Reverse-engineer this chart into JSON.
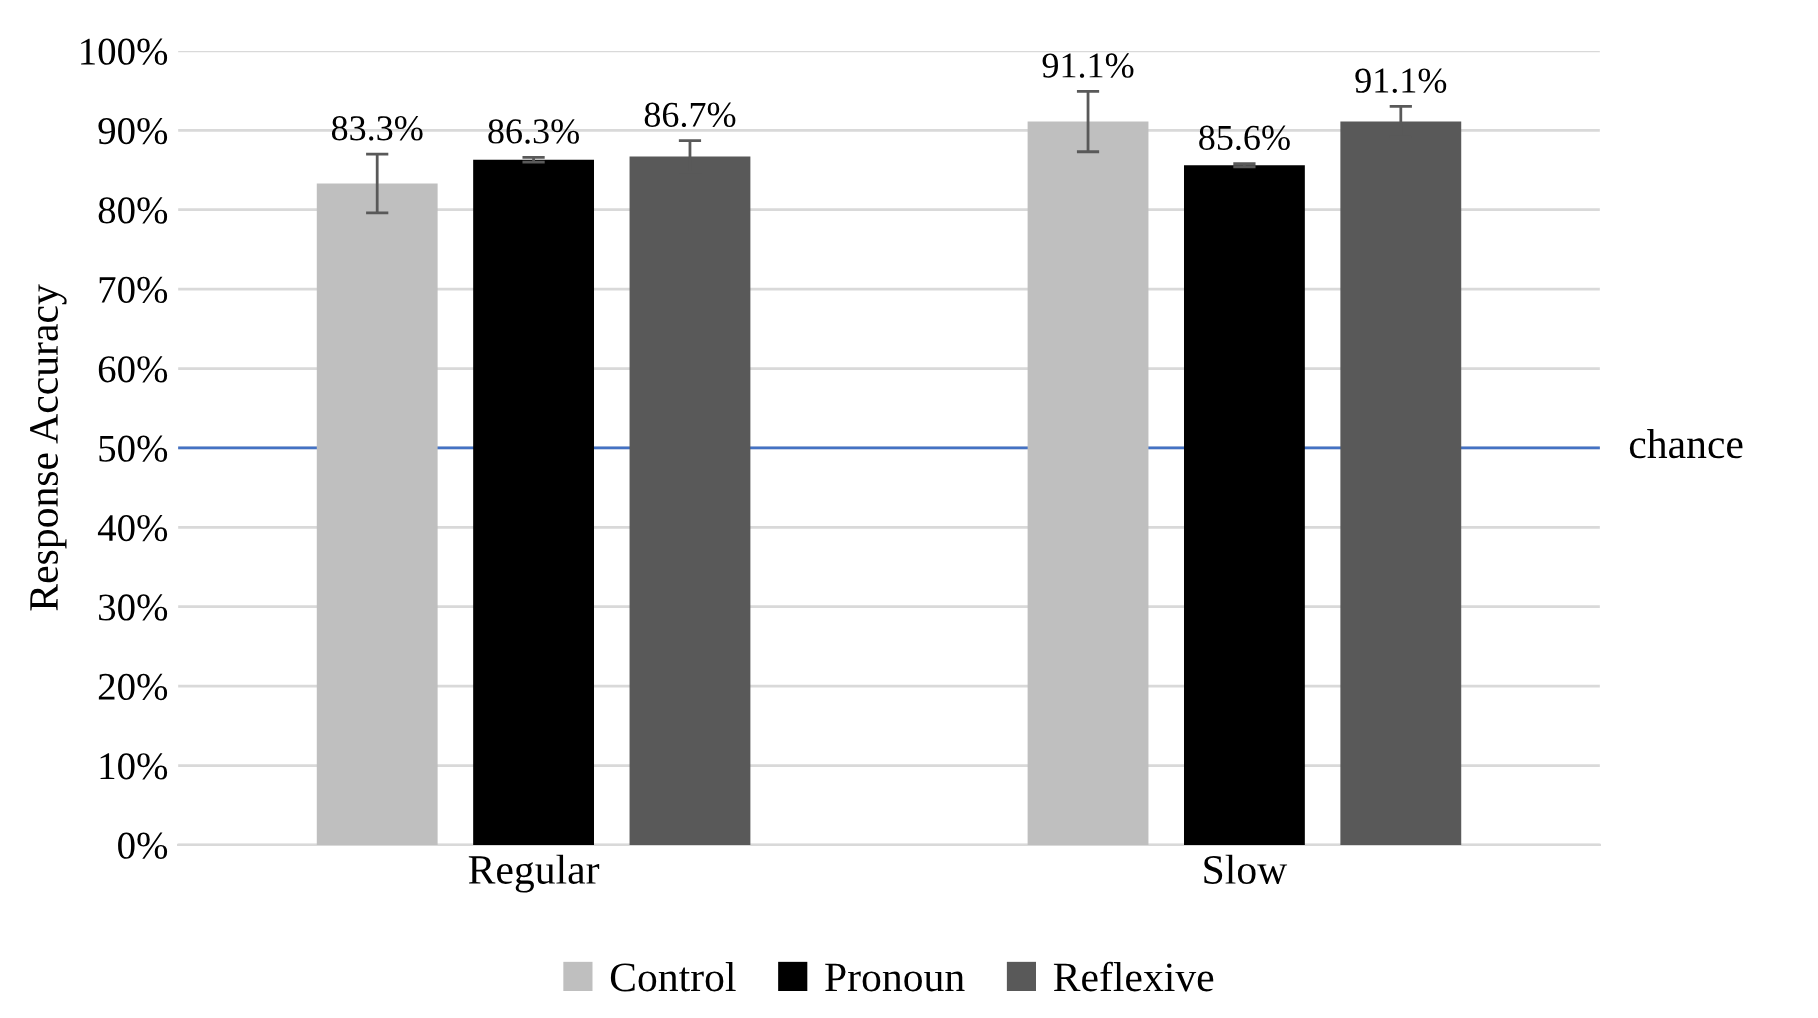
{
  "chart_data": {
    "type": "bar",
    "ylabel": "Response Accuracy",
    "categories": [
      "Regular",
      "Slow"
    ],
    "series": [
      {
        "name": "Control",
        "color": "#bfbfbf",
        "values": [
          83.3,
          91.1
        ],
        "errors": [
          3.7,
          3.8
        ],
        "value_labels": [
          "83.3%",
          "91.1%"
        ]
      },
      {
        "name": "Pronoun",
        "color": "#000000",
        "values": [
          86.3,
          85.6
        ],
        "errors": [
          0.3,
          0.2
        ],
        "value_labels": [
          "86.3%",
          "85.6%"
        ]
      },
      {
        "name": "Reflexive",
        "color": "#595959",
        "values": [
          86.7,
          91.1
        ],
        "errors": [
          2.0,
          1.9
        ],
        "value_labels": [
          "86.7%",
          "91.1%"
        ]
      }
    ],
    "ylim": [
      0,
      100
    ],
    "yticks": [
      {
        "value": 0,
        "label": "0%"
      },
      {
        "value": 10,
        "label": "10%"
      },
      {
        "value": 20,
        "label": "20%"
      },
      {
        "value": 30,
        "label": "30%"
      },
      {
        "value": 40,
        "label": "40%"
      },
      {
        "value": 50,
        "label": "50%"
      },
      {
        "value": 60,
        "label": "60%"
      },
      {
        "value": 70,
        "label": "70%"
      },
      {
        "value": 80,
        "label": "80%"
      },
      {
        "value": 90,
        "label": "90%"
      },
      {
        "value": 100,
        "label": "100%"
      }
    ],
    "ref_lines": [
      {
        "axis": "y",
        "value": 50,
        "label": "chance",
        "color": "#4472c4"
      }
    ],
    "grid": "y",
    "legend": "bottom"
  }
}
